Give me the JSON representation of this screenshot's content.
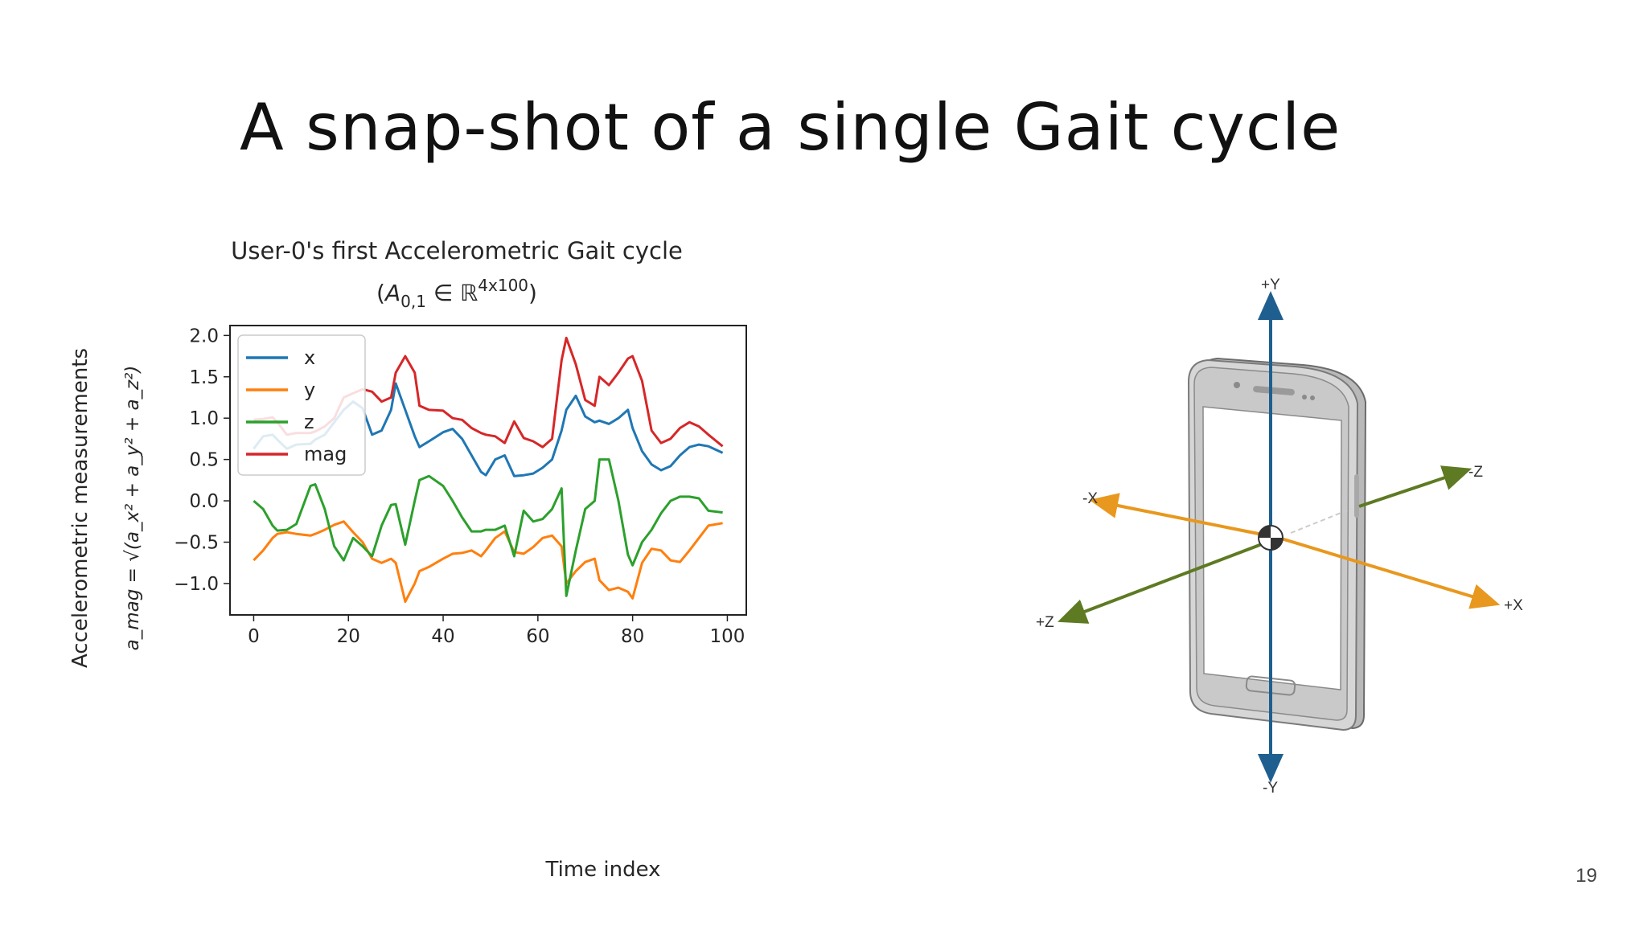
{
  "slide": {
    "title": "A snap-shot of a single Gait cycle",
    "page_number": "19"
  },
  "chart_data": {
    "type": "line",
    "title": "User-0's first Accelerometric Gait cycle",
    "subtitle": "(A_{0,1} ∈ ℝ^{4x100})",
    "xlabel": "Time index",
    "ylabel": "Accelerometric measurements",
    "ylabel_formula": "a_mag = √(a_x² + a_y² + a_z²)",
    "xlim": [
      -5,
      104
    ],
    "ylim": [
      -1.38,
      2.12
    ],
    "xticks": [
      0,
      20,
      40,
      60,
      80,
      100
    ],
    "xtick_labels": [
      "0",
      "20",
      "40",
      "60",
      "80",
      "100"
    ],
    "yticks": [
      2.0,
      1.5,
      1.0,
      0.5,
      0.0,
      -0.5,
      -1.0
    ],
    "ytick_labels": [
      "2.0",
      "1.5",
      "1.0",
      "0.5",
      "0.0",
      "−0.5",
      "−1.0"
    ],
    "grid": false,
    "legend_placement": "top-left",
    "x": [
      0,
      2,
      4,
      5,
      7,
      9,
      12,
      13,
      15,
      17,
      19,
      21,
      23,
      25,
      27,
      29,
      30,
      32,
      34,
      35,
      37,
      40,
      42,
      44,
      46,
      48,
      49,
      51,
      53,
      55,
      57,
      59,
      61,
      63,
      65,
      66,
      68,
      70,
      72,
      73,
      75,
      77,
      79,
      80,
      82,
      84,
      86,
      88,
      90,
      92,
      94,
      96,
      99
    ],
    "series": [
      {
        "name": "x",
        "color": "#1f77b4",
        "values": [
          0.63,
          0.78,
          0.8,
          0.74,
          0.63,
          0.68,
          0.69,
          0.74,
          0.8,
          0.95,
          1.1,
          1.2,
          1.12,
          0.8,
          0.85,
          1.1,
          1.42,
          1.1,
          0.78,
          0.65,
          0.72,
          0.83,
          0.87,
          0.75,
          0.55,
          0.35,
          0.31,
          0.5,
          0.55,
          0.3,
          0.31,
          0.33,
          0.4,
          0.5,
          0.85,
          1.1,
          1.27,
          1.02,
          0.95,
          0.97,
          0.93,
          1.0,
          1.1,
          0.88,
          0.6,
          0.44,
          0.37,
          0.42,
          0.55,
          0.65,
          0.68,
          0.66,
          0.58
        ]
      },
      {
        "name": "y",
        "color": "#ff7f0e",
        "values": [
          -0.72,
          -0.6,
          -0.45,
          -0.4,
          -0.38,
          -0.4,
          -0.42,
          -0.4,
          -0.35,
          -0.29,
          -0.25,
          -0.38,
          -0.5,
          -0.7,
          -0.75,
          -0.7,
          -0.75,
          -1.22,
          -1.0,
          -0.85,
          -0.8,
          -0.7,
          -0.64,
          -0.63,
          -0.6,
          -0.67,
          -0.6,
          -0.45,
          -0.37,
          -0.62,
          -0.64,
          -0.56,
          -0.45,
          -0.42,
          -0.55,
          -1.0,
          -0.85,
          -0.74,
          -0.7,
          -0.96,
          -1.08,
          -1.05,
          -1.1,
          -1.18,
          -0.75,
          -0.58,
          -0.6,
          -0.72,
          -0.74,
          -0.6,
          -0.45,
          -0.3,
          -0.27
        ]
      },
      {
        "name": "z",
        "color": "#2ca02c",
        "values": [
          0.0,
          -0.1,
          -0.3,
          -0.36,
          -0.35,
          -0.28,
          0.18,
          0.2,
          -0.1,
          -0.55,
          -0.72,
          -0.45,
          -0.55,
          -0.67,
          -0.3,
          -0.05,
          -0.04,
          -0.53,
          0.0,
          0.25,
          0.3,
          0.18,
          0.0,
          -0.2,
          -0.37,
          -0.37,
          -0.35,
          -0.35,
          -0.3,
          -0.67,
          -0.12,
          -0.25,
          -0.22,
          -0.1,
          0.15,
          -1.15,
          -0.6,
          -0.1,
          0.0,
          0.5,
          0.5,
          0.0,
          -0.65,
          -0.78,
          -0.5,
          -0.35,
          -0.15,
          0.0,
          0.05,
          0.05,
          0.03,
          -0.12,
          -0.14
        ]
      },
      {
        "name": "mag",
        "color": "#d62728",
        "values": [
          0.98,
          0.99,
          1.01,
          0.95,
          0.8,
          0.82,
          0.82,
          0.84,
          0.9,
          1.0,
          1.25,
          1.3,
          1.35,
          1.32,
          1.2,
          1.25,
          1.55,
          1.75,
          1.55,
          1.15,
          1.1,
          1.09,
          1.0,
          0.98,
          0.88,
          0.82,
          0.8,
          0.78,
          0.7,
          0.96,
          0.76,
          0.72,
          0.65,
          0.75,
          1.7,
          1.97,
          1.65,
          1.22,
          1.15,
          1.5,
          1.4,
          1.55,
          1.72,
          1.75,
          1.45,
          0.85,
          0.7,
          0.75,
          0.88,
          0.95,
          0.9,
          0.8,
          0.66
        ]
      }
    ]
  },
  "diagram": {
    "axis_labels": {
      "plus_y": "+Y",
      "minus_y": "-Y",
      "plus_x": "+X",
      "minus_x": "-X",
      "plus_z": "+Z",
      "minus_z": "-Z"
    },
    "colors": {
      "y_axis": "#1f5f8f",
      "x_axis": "#e8981e",
      "z_axis": "#5e7a22"
    }
  }
}
